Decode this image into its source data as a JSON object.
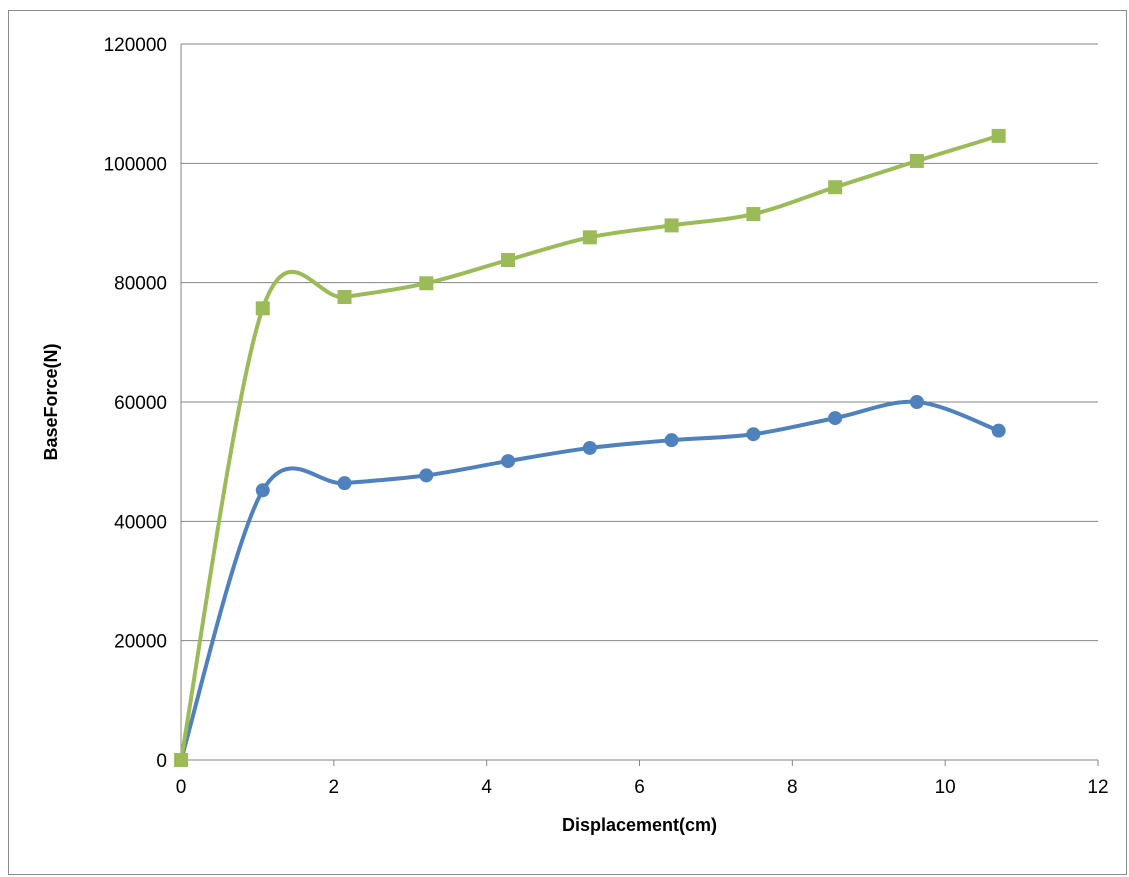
{
  "chart_data": {
    "type": "line",
    "xlabel": "Displacement(cm)",
    "ylabel": "BaseForce(N)",
    "xlim": [
      0,
      12
    ],
    "ylim": [
      0,
      120000
    ],
    "x_ticks": [
      "0",
      "2",
      "4",
      "6",
      "8",
      "10",
      "12"
    ],
    "y_ticks": [
      "0",
      "20000",
      "40000",
      "60000",
      "80000",
      "100000",
      "120000"
    ],
    "grid": "horizontal",
    "smooth": true,
    "series": [
      {
        "color": "#4f81bd",
        "marker": "circle",
        "x": [
          0,
          1.07,
          2.14,
          3.21,
          4.28,
          5.35,
          6.42,
          7.49,
          8.56,
          9.63,
          10.7
        ],
        "y": [
          0,
          45200,
          46400,
          47700,
          50100,
          52300,
          53600,
          54600,
          57300,
          60000,
          55200
        ]
      },
      {
        "color": "#9bbb59",
        "marker": "square",
        "x": [
          0,
          1.07,
          2.14,
          3.21,
          4.28,
          5.35,
          6.42,
          7.49,
          8.56,
          9.63,
          10.7
        ],
        "y": [
          0,
          75700,
          77600,
          79900,
          83800,
          87600,
          89600,
          91500,
          96000,
          100400,
          104600
        ]
      }
    ]
  }
}
